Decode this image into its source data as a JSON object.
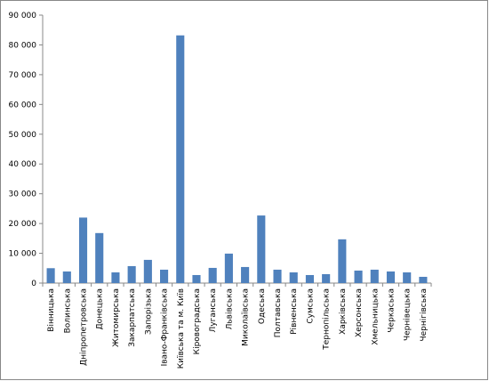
{
  "chart_data": {
    "type": "bar",
    "color": "#4f81bd",
    "categories": [
      "Вінницька",
      "Волинська",
      "Дніпропетровська",
      "Донецька",
      "Житомирська",
      "Закарпатська",
      "Запорізька",
      "Івано-Франківська",
      "Київська та м. Київ",
      "Кіровоградська",
      "Луганська",
      "Львівська",
      "Миколаївська",
      "Одеська",
      "Полтавська",
      "Рівненська",
      "Сумська",
      "Тернопільська",
      "Харківська",
      "Херсонська",
      "Хмельницька",
      "Черкаська",
      "Чернівецька",
      "Чернігівська"
    ],
    "values": [
      5000,
      3900,
      22000,
      16800,
      3600,
      5700,
      7800,
      4500,
      83200,
      2700,
      5100,
      9900,
      5400,
      22700,
      4500,
      3600,
      2700,
      3000,
      14700,
      4200,
      4500,
      3900,
      3600,
      2100
    ],
    "ylim": [
      0,
      90000
    ],
    "yticks": [
      0,
      {
        "value": 10000,
        "label": "10 000"
      },
      {
        "value": 20000,
        "label": "20 000"
      },
      {
        "value": 30000,
        "label": "30 000"
      },
      {
        "value": 40000,
        "label": "40 000"
      },
      {
        "value": 50000,
        "label": "50 000"
      },
      {
        "value": 60000,
        "label": "60 000"
      },
      {
        "value": 70000,
        "label": "70 000"
      },
      {
        "value": 80000,
        "label": "80 000"
      },
      {
        "value": 90000,
        "label": "90 000"
      }
    ],
    "grid": false
  }
}
